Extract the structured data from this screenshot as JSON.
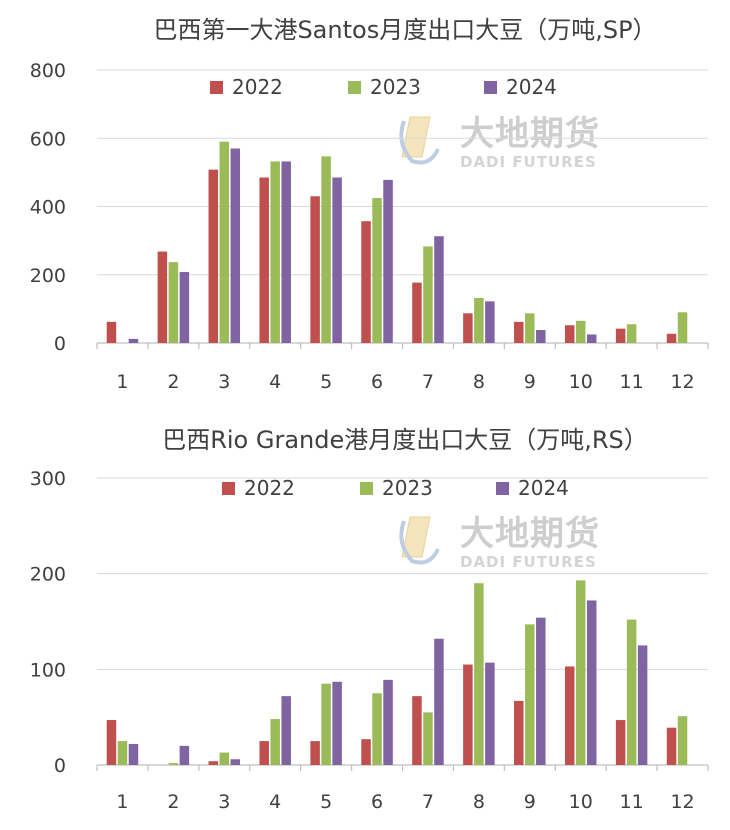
{
  "charts": [
    {
      "title": "巴西第一大港Santos月度出口大豆（万吨,SP）",
      "type": "bar",
      "categories": [
        "1",
        "2",
        "3",
        "4",
        "5",
        "6",
        "7",
        "8",
        "9",
        "10",
        "11",
        "12"
      ],
      "ylim": [
        0,
        800
      ],
      "yticks": [
        "0",
        "200",
        "400",
        "600",
        "800"
      ],
      "grid": true,
      "legend_position": "top",
      "series": [
        {
          "name": "2022",
          "color": "#c0504d",
          "values": [
            62,
            268,
            508,
            485,
            430,
            357,
            177,
            87,
            62,
            52,
            42,
            27
          ]
        },
        {
          "name": "2023",
          "color": "#9bbb59",
          "values": [
            null,
            237,
            590,
            532,
            547,
            425,
            283,
            132,
            87,
            65,
            55,
            90
          ]
        },
        {
          "name": "2024",
          "color": "#8064a2",
          "values": [
            12,
            208,
            570,
            532,
            485,
            478,
            313,
            122,
            38,
            25,
            null,
            null
          ]
        }
      ]
    },
    {
      "title": "巴西Rio Grande港月度出口大豆（万吨,RS）",
      "type": "bar",
      "categories": [
        "1",
        "2",
        "3",
        "4",
        "5",
        "6",
        "7",
        "8",
        "9",
        "10",
        "11",
        "12"
      ],
      "ylim": [
        0,
        300
      ],
      "yticks": [
        "0",
        "100",
        "200",
        "300"
      ],
      "grid": true,
      "legend_position": "top",
      "series": [
        {
          "name": "2022",
          "color": "#c0504d",
          "values": [
            47,
            null,
            4,
            25,
            25,
            27,
            72,
            105,
            67,
            103,
            47,
            39
          ]
        },
        {
          "name": "2023",
          "color": "#9bbb59",
          "values": [
            25,
            2,
            13,
            48,
            85,
            75,
            55,
            190,
            147,
            193,
            152,
            51
          ]
        },
        {
          "name": "2024",
          "color": "#8064a2",
          "values": [
            22,
            20,
            6,
            72,
            87,
            89,
            132,
            107,
            154,
            172,
            125,
            null
          ]
        }
      ]
    }
  ],
  "watermark": {
    "cn": "大地期货",
    "en": "DADI FUTURES"
  }
}
